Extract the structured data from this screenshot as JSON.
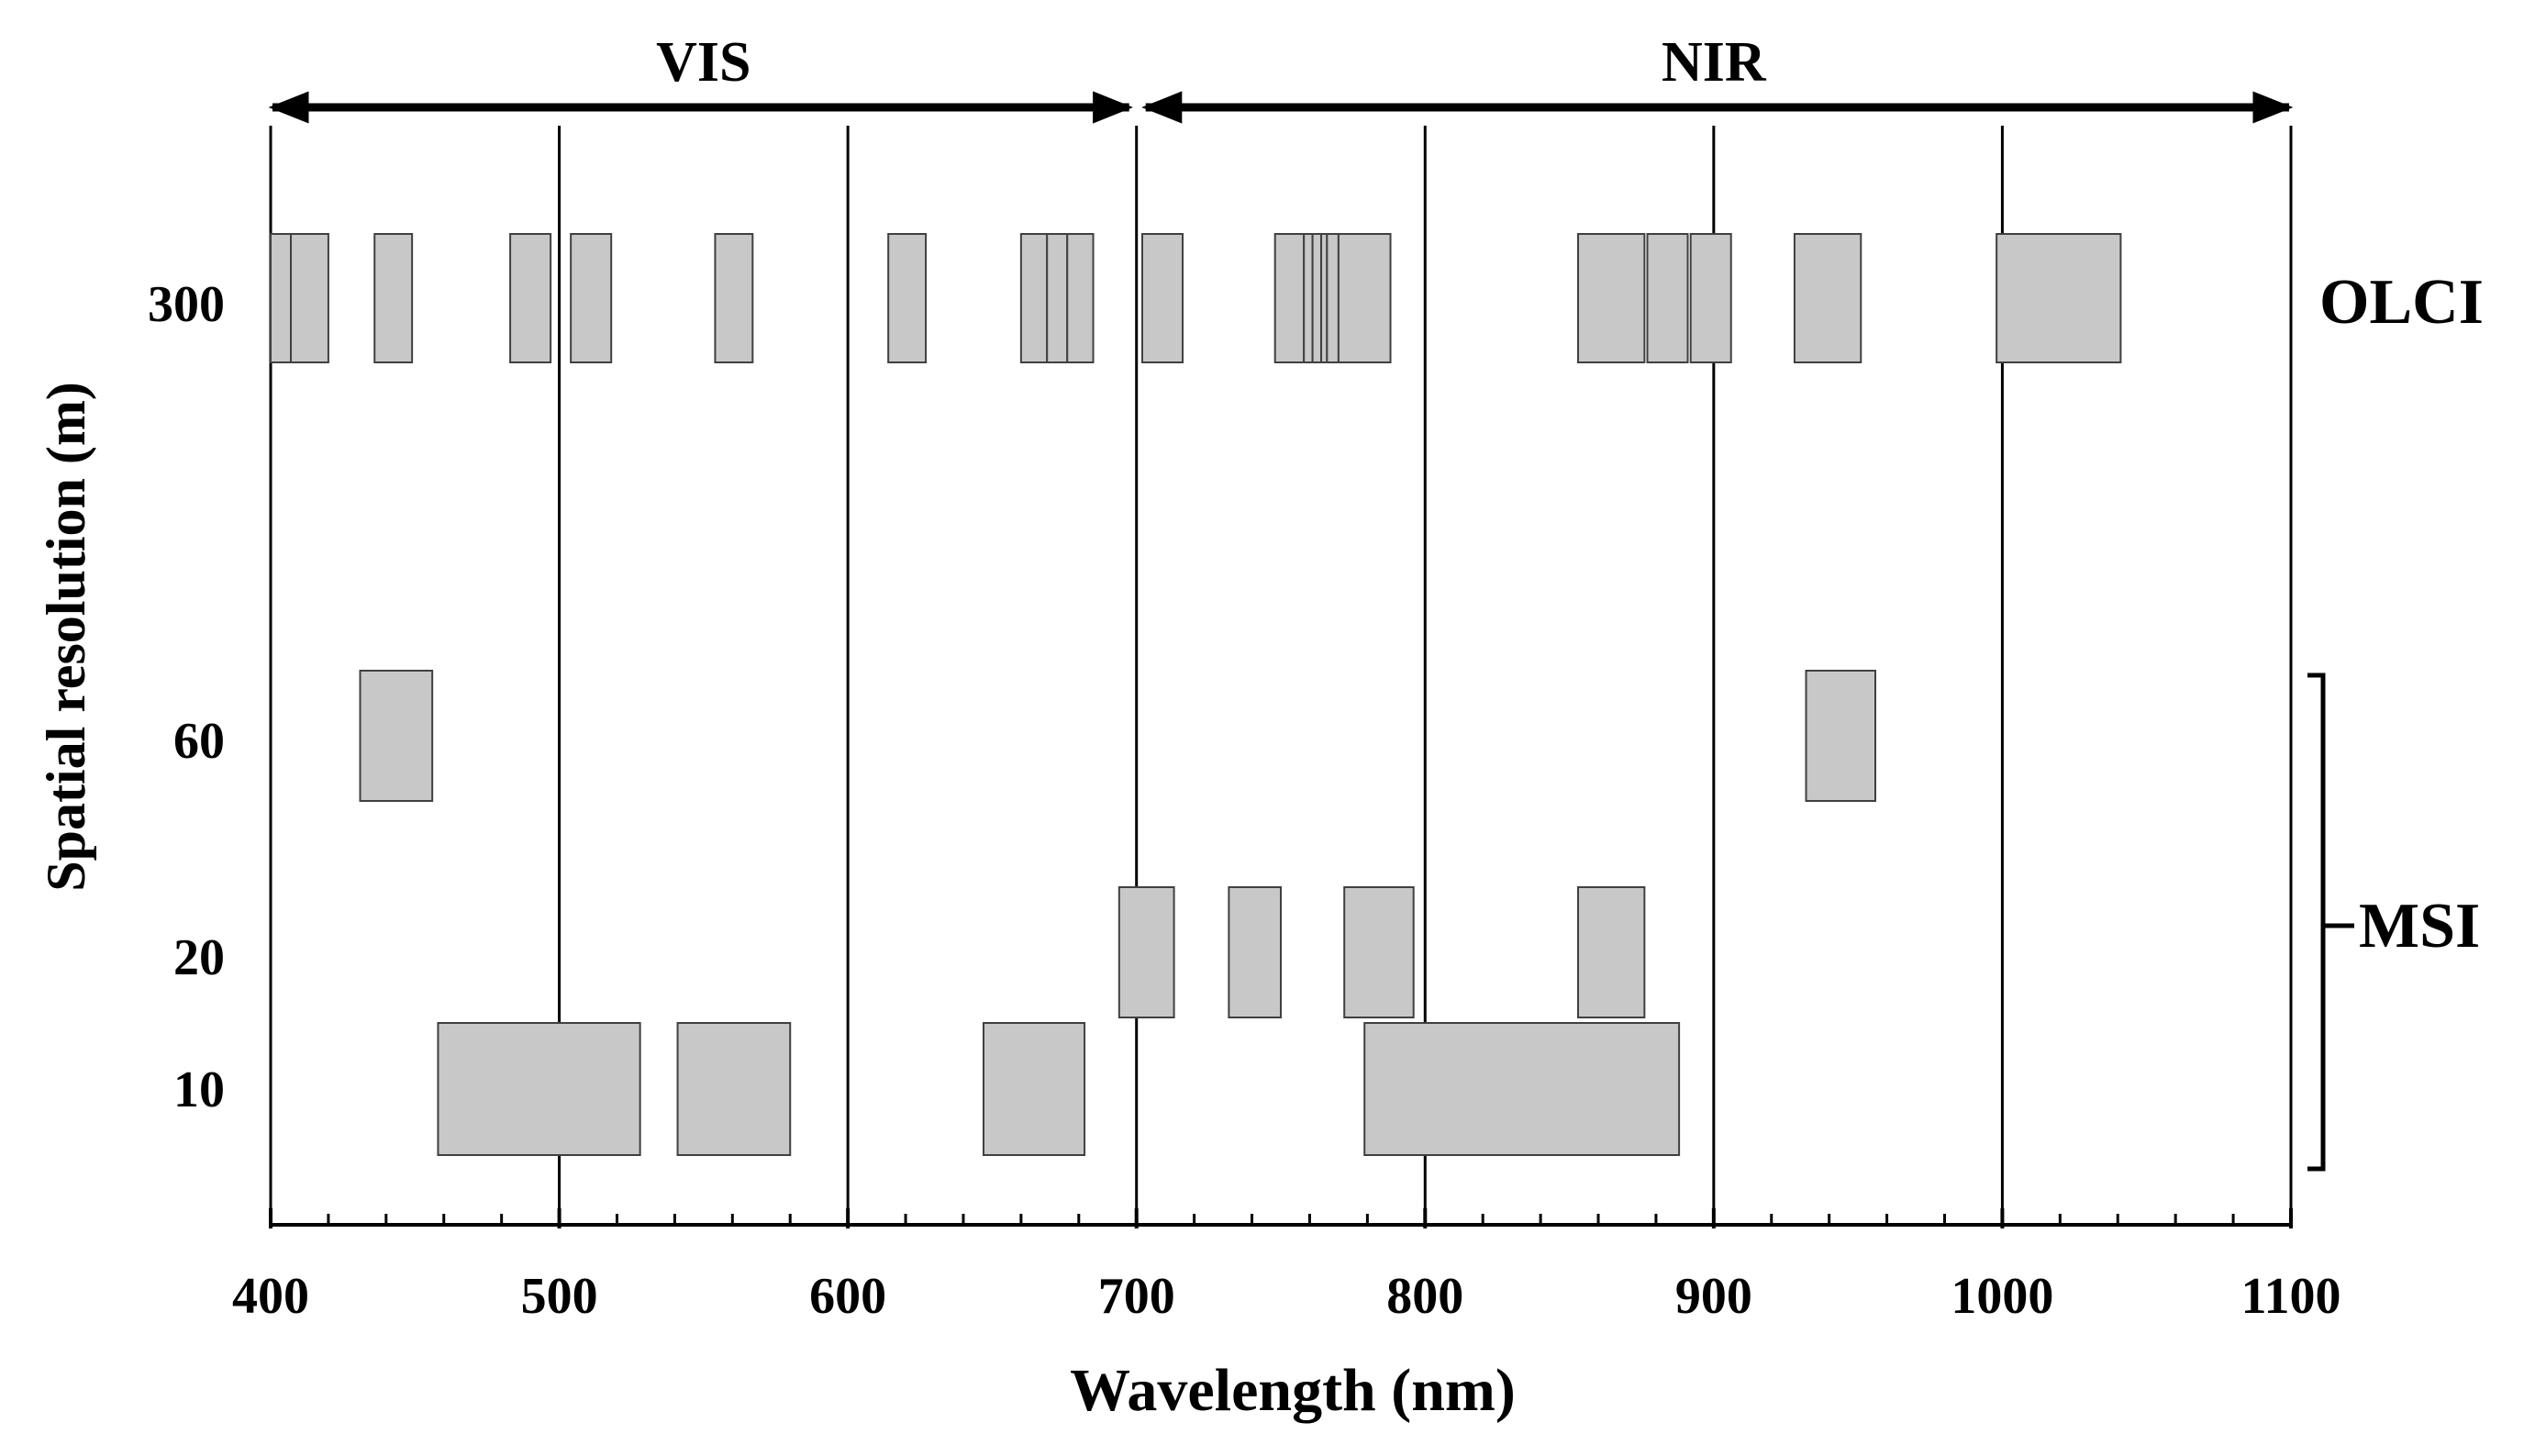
{
  "chart_data": {
    "type": "spectral-band-chart",
    "title": "",
    "xlabel": "Wavelength (nm)",
    "ylabel": "Spatial resolution (m)",
    "xlim": [
      400,
      1100
    ],
    "x_ticks": [
      "400",
      "500",
      "600",
      "700",
      "800",
      "900",
      "1000",
      "1100"
    ],
    "x_tick_values": [
      400,
      500,
      600,
      700,
      800,
      900,
      1000,
      1100
    ],
    "x_minor_step": 20,
    "vertical_gridlines": [
      400,
      500,
      600,
      700,
      800,
      900,
      1000,
      1100
    ],
    "y_ticks": [
      "300",
      "60",
      "20",
      "10"
    ],
    "y_tick_values": [
      300,
      60,
      20,
      10
    ],
    "regions": [
      {
        "label": "VIS",
        "from": 400,
        "to": 700
      },
      {
        "label": "NIR",
        "from": 700,
        "to": 1100
      }
    ],
    "colors": {
      "band_fill": "#c8c8c8",
      "band_stroke": "#404040",
      "line": "#000000"
    },
    "series": [
      {
        "name": "OLCI",
        "resolution_m": 300,
        "bands_nm": [
          [
            400,
            407
          ],
          [
            407,
            420
          ],
          [
            436,
            449
          ],
          [
            483,
            497
          ],
          [
            504,
            518
          ],
          [
            554,
            567
          ],
          [
            614,
            627
          ],
          [
            660,
            669
          ],
          [
            669,
            676
          ],
          [
            676,
            685
          ],
          [
            702,
            716
          ],
          [
            748,
            758
          ],
          [
            758,
            761
          ],
          [
            761,
            764
          ],
          [
            764,
            766
          ],
          [
            766,
            770
          ],
          [
            770,
            788
          ],
          [
            853,
            876
          ],
          [
            877,
            891
          ],
          [
            892,
            906
          ],
          [
            928,
            951
          ],
          [
            998,
            1041
          ]
        ]
      },
      {
        "name": "MSI",
        "bands_by_resolution": [
          {
            "resolution_m": 60,
            "bands_nm": [
              [
                431,
                456
              ],
              [
                932,
                956
              ]
            ]
          },
          {
            "resolution_m": 20,
            "bands_nm": [
              [
                694,
                713
              ],
              [
                732,
                750
              ],
              [
                772,
                796
              ],
              [
                853,
                876
              ]
            ]
          },
          {
            "resolution_m": 10,
            "bands_nm": [
              [
                458,
                528
              ],
              [
                541,
                580
              ],
              [
                647,
                682
              ],
              [
                779,
                888
              ]
            ]
          }
        ]
      }
    ]
  }
}
